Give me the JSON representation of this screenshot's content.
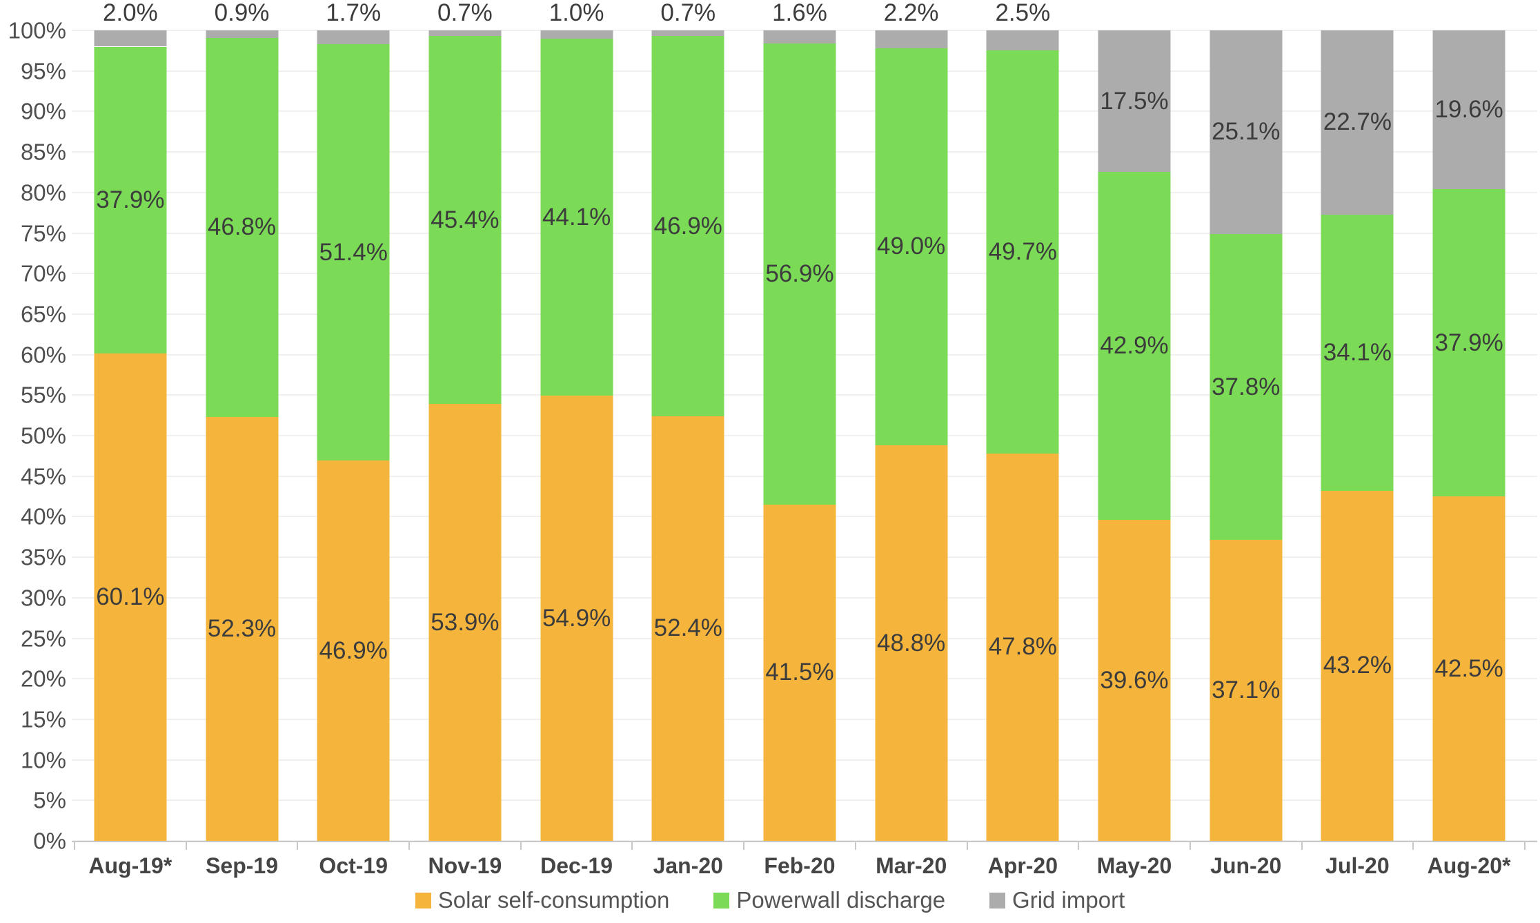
{
  "chart_data": {
    "type": "bar",
    "stacked": true,
    "orientation": "vertical",
    "categories": [
      "Aug-19*",
      "Sep-19",
      "Oct-19",
      "Nov-19",
      "Dec-19",
      "Jan-20",
      "Feb-20",
      "Mar-20",
      "Apr-20",
      "May-20",
      "Jun-20",
      "Jul-20",
      "Aug-20*"
    ],
    "series": [
      {
        "name": "Solar self-consumption",
        "color": "#F5B53C",
        "values": [
          60.1,
          52.3,
          46.9,
          53.9,
          54.9,
          52.4,
          41.5,
          48.8,
          47.8,
          39.6,
          37.1,
          43.2,
          42.5
        ],
        "labels": [
          "60.1%",
          "52.3%",
          "46.9%",
          "53.9%",
          "54.9%",
          "52.4%",
          "41.5%",
          "48.8%",
          "47.8%",
          "39.6%",
          "37.1%",
          "43.2%",
          "42.5%"
        ]
      },
      {
        "name": "Powerwall discharge",
        "color": "#7BDB57",
        "values": [
          37.9,
          46.8,
          51.4,
          45.4,
          44.1,
          46.9,
          56.9,
          49.0,
          49.7,
          42.9,
          37.8,
          34.1,
          37.9
        ],
        "labels": [
          "37.9%",
          "46.8%",
          "51.4%",
          "45.4%",
          "44.1%",
          "46.9%",
          "56.9%",
          "49.0%",
          "49.7%",
          "42.9%",
          "37.8%",
          "34.1%",
          "37.9%"
        ]
      },
      {
        "name": "Grid import",
        "color": "#ACACAC",
        "values": [
          2.0,
          0.9,
          1.7,
          0.7,
          1.0,
          0.7,
          1.6,
          2.2,
          2.5,
          17.5,
          25.1,
          22.7,
          19.6
        ],
        "labels": [
          "2.0%",
          "0.9%",
          "1.7%",
          "0.7%",
          "1.0%",
          "0.7%",
          "1.6%",
          "2.2%",
          "2.5%",
          "17.5%",
          "25.1%",
          "22.7%",
          "19.6%"
        ]
      }
    ],
    "ylim": [
      0,
      100
    ],
    "ytick_step": 5,
    "ytick_suffix": "%",
    "ytick_labels": [
      "0%",
      "5%",
      "10%",
      "15%",
      "20%",
      "25%",
      "30%",
      "35%",
      "40%",
      "45%",
      "50%",
      "55%",
      "60%",
      "65%",
      "70%",
      "75%",
      "80%",
      "85%",
      "90%",
      "95%",
      "100%"
    ],
    "grid": true,
    "legend_position": "bottom",
    "label_inside_min_value": 10,
    "style": {
      "background": "#ffffff",
      "grid_color": "#f1eff0",
      "axis_color": "#c8c8c8",
      "tick_color": "#c8c8c8",
      "ytick_label_color": "#4f4f4f",
      "xtick_label_color": "#454545",
      "data_label_color": "#3c3c3c",
      "legend_text_color": "#555555"
    }
  }
}
